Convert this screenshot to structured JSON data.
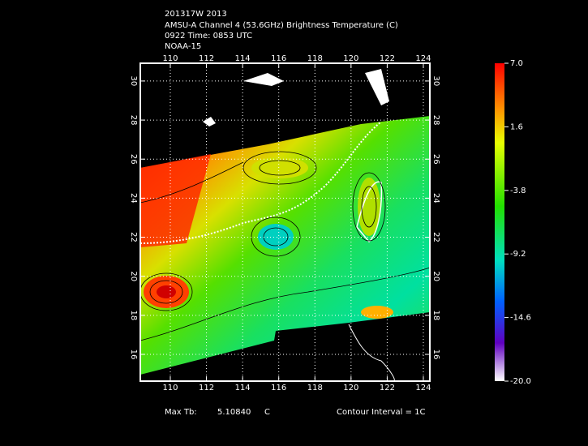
{
  "header": {
    "lines": [
      "201317W 2013",
      "AMSU-A Channel 4 (53.6GHz) Brightness Temperature (C)",
      "0922 Time: 0853 UTC",
      "NOAA-15"
    ]
  },
  "map": {
    "xlim": [
      108.34,
      124.36
    ],
    "ylim": [
      14.63,
      30.91
    ],
    "xticks": [
      110,
      112,
      114,
      116,
      118,
      120,
      122,
      124
    ],
    "yticks": [
      16,
      18,
      20,
      22,
      24,
      26,
      28,
      30
    ]
  },
  "colorbar": {
    "lim": [
      -20,
      7
    ],
    "ticks": [
      {
        "value": 7,
        "label": "7.0"
      },
      1.6,
      -3.8,
      -9.2,
      -14.6,
      {
        "value": -20,
        "label": "-20.0"
      }
    ]
  },
  "footer": {
    "max_tb_label": "Max Tb:",
    "max_tb_value": "5.10840",
    "max_tb_unit": "C",
    "contour_interval": "Contour Interval = 1C"
  }
}
